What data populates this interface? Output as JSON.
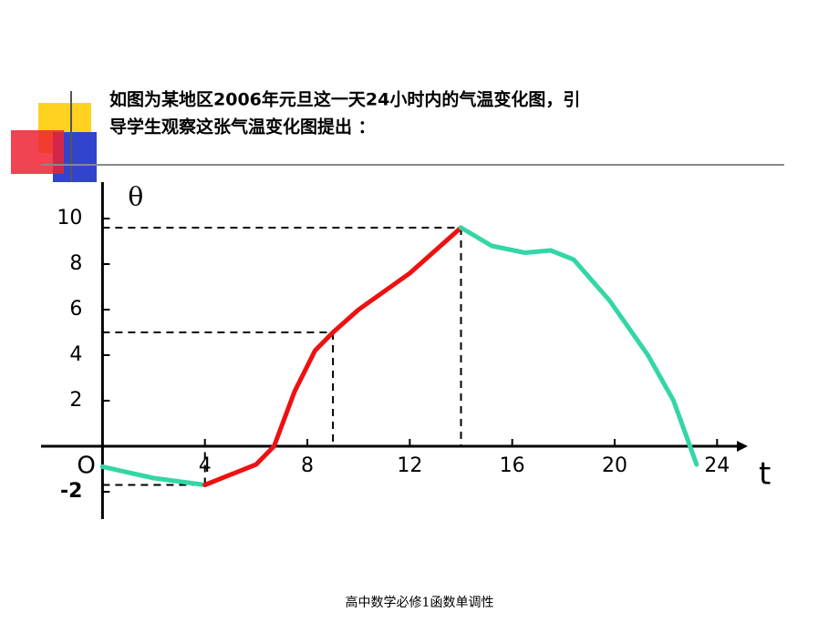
{
  "chart_data": {
    "type": "line",
    "title": [
      "如图为某地区2006年元旦这一天24小时内的气温变化图，引",
      "导学生观察这张气温变化图提出 ："
    ],
    "x_label": "t",
    "y_label": "θ",
    "origin_label": "O",
    "x": [
      0,
      2,
      4,
      6,
      6.7,
      7.5,
      8.3,
      9,
      10,
      12,
      14,
      15.2,
      16.5,
      17.5,
      18.4,
      19.8,
      21.3,
      22.3,
      23.2
    ],
    "series": [
      {
        "color": "#33d6a6",
        "values": [
          -0.9,
          -1.4,
          -1.7,
          null,
          null,
          null,
          null,
          null,
          null,
          null,
          null,
          null,
          null,
          null,
          null,
          null,
          null,
          null,
          null
        ]
      },
      {
        "color": "#ee1111",
        "values": [
          null,
          null,
          -1.7,
          -0.8,
          0,
          2.4,
          4.2,
          5,
          6,
          7.6,
          9.6,
          null,
          null,
          null,
          null,
          null,
          null,
          null,
          null
        ]
      },
      {
        "color": "#33d6a6",
        "values": [
          null,
          null,
          null,
          null,
          null,
          null,
          null,
          null,
          null,
          null,
          9.6,
          8.8,
          8.5,
          8.6,
          8.2,
          6.4,
          4,
          2,
          -0.8
        ]
      }
    ],
    "xlim": [
      -2.4,
      25.2
    ],
    "ylim": [
      -3.2,
      11.6
    ],
    "xticks": [
      4,
      8,
      12,
      16,
      20,
      24
    ],
    "yticks": [
      -2,
      2,
      4,
      6,
      8,
      10
    ],
    "footer": "高中数学必修1函数单调性"
  }
}
